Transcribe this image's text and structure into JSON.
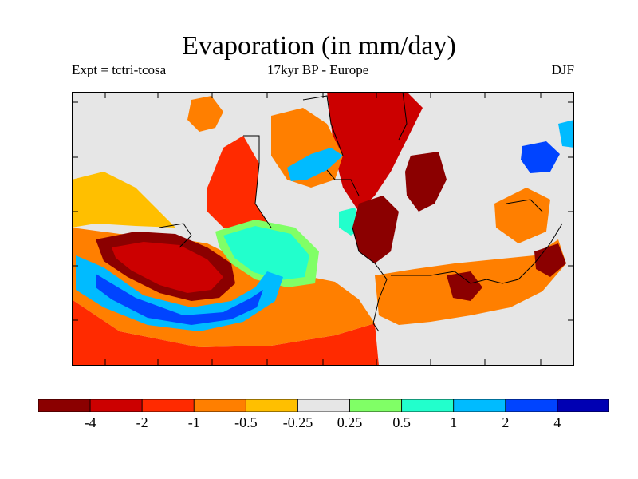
{
  "title": "Evaporation (in mm/day)",
  "subtitle_left": "Expt = tctri-tcosa",
  "subtitle_center": "17kyr BP - Europe",
  "subtitle_right": "DJF",
  "colors": {
    "land": "#e6e6e6",
    "bins": [
      "#8b0000",
      "#cc0000",
      "#ff2a00",
      "#ff7f00",
      "#ffbf00",
      "#e6e6e6",
      "#80ff66",
      "#22ffcc",
      "#00bbff",
      "#0044ff",
      "#0000b3"
    ]
  },
  "colorbar": {
    "tick_labels": [
      "-4",
      "-2",
      "-1",
      "-0.5",
      "-0.25",
      "0.25",
      "0.5",
      "1",
      "2",
      "4"
    ]
  }
}
